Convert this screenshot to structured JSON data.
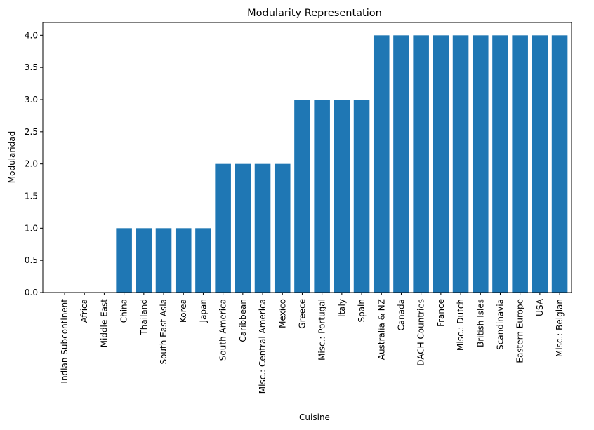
{
  "chart_data": {
    "type": "bar",
    "title": "Modularity Representation",
    "xlabel": "Cuisine",
    "ylabel": "Modularidad",
    "categories": [
      "Indian Subcontinent",
      "Africa",
      "Middle East",
      "China",
      "Thailand",
      "South East Asia",
      "Korea",
      "Japan",
      "South America",
      "Caribbean",
      "Misc.: Central America",
      "Mexico",
      "Greece",
      "Misc.: Portugal",
      "Italy",
      "Spain",
      "Australia & NZ",
      "Canada",
      "DACH Countries",
      "France",
      "Misc.: Dutch",
      "British Isles",
      "Scandinavia",
      "Eastern Europe",
      "USA",
      "Misc.: Belgian"
    ],
    "values": [
      0,
      0,
      0,
      1,
      1,
      1,
      1,
      1,
      2,
      2,
      2,
      2,
      3,
      3,
      3,
      3,
      4,
      4,
      4,
      4,
      4,
      4,
      4,
      4,
      4,
      4
    ],
    "yticks": [
      "0.0",
      "0.5",
      "1.0",
      "1.5",
      "2.0",
      "2.5",
      "3.0",
      "3.5",
      "4.0"
    ],
    "ylim": [
      0,
      4.2
    ],
    "grid": false,
    "bar_color": "#1f77b4"
  }
}
